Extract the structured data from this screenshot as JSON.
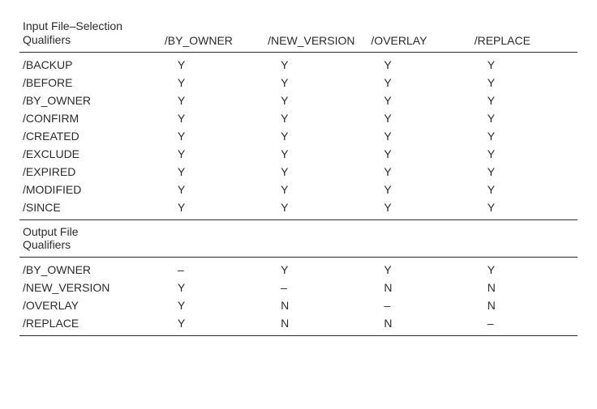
{
  "table": {
    "columns": [
      "/BY_OWNER",
      "/NEW_VERSION",
      "/OVERLAY",
      "/REPLACE"
    ],
    "col_widths_pct": [
      26,
      18.5,
      18.5,
      18.5,
      18.5
    ],
    "font_size_pt": 10,
    "text_color": "#2b2b2b",
    "rule_color": "#2b2b2b",
    "background_color": "#ffffff",
    "sections": [
      {
        "header": "Input File–Selection\nQualifiers",
        "rows": [
          {
            "label": "/BACKUP",
            "values": [
              "Y",
              "Y",
              "Y",
              "Y"
            ]
          },
          {
            "label": "/BEFORE",
            "values": [
              "Y",
              "Y",
              "Y",
              "Y"
            ]
          },
          {
            "label": "/BY_OWNER",
            "values": [
              "Y",
              "Y",
              "Y",
              "Y"
            ]
          },
          {
            "label": "/CONFIRM",
            "values": [
              "Y",
              "Y",
              "Y",
              "Y"
            ]
          },
          {
            "label": "/CREATED",
            "values": [
              "Y",
              "Y",
              "Y",
              "Y"
            ]
          },
          {
            "label": "/EXCLUDE",
            "values": [
              "Y",
              "Y",
              "Y",
              "Y"
            ]
          },
          {
            "label": "/EXPIRED",
            "values": [
              "Y",
              "Y",
              "Y",
              "Y"
            ]
          },
          {
            "label": "/MODIFIED",
            "values": [
              "Y",
              "Y",
              "Y",
              "Y"
            ]
          },
          {
            "label": "/SINCE",
            "values": [
              "Y",
              "Y",
              "Y",
              "Y"
            ]
          }
        ]
      },
      {
        "header": "Output File\nQualifiers",
        "rows": [
          {
            "label": "/BY_OWNER",
            "values": [
              "–",
              "Y",
              "Y",
              "Y"
            ]
          },
          {
            "label": "/NEW_VERSION",
            "values": [
              "Y",
              "–",
              "N",
              "N"
            ]
          },
          {
            "label": "/OVERLAY",
            "values": [
              "Y",
              "N",
              "–",
              "N"
            ]
          },
          {
            "label": "/REPLACE",
            "values": [
              "Y",
              "N",
              "N",
              "–"
            ]
          }
        ]
      }
    ]
  }
}
